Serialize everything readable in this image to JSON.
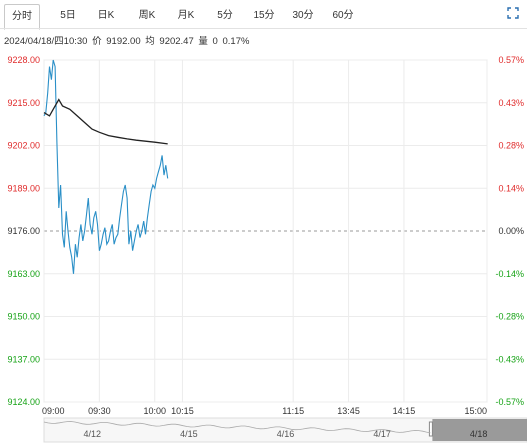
{
  "tabs": [
    {
      "label": "分时",
      "active": true
    },
    {
      "label": "5日",
      "active": false
    },
    {
      "label": "日K",
      "active": false
    },
    {
      "label": "周K",
      "active": false
    },
    {
      "label": "月K",
      "active": false
    },
    {
      "label": "5分",
      "active": false
    },
    {
      "label": "15分",
      "active": false
    },
    {
      "label": "30分",
      "active": false
    },
    {
      "label": "60分",
      "active": false
    }
  ],
  "info": {
    "datetime": "2024/04/18/四10:30",
    "price_label": "价",
    "price": "9192.00",
    "avg_label": "均",
    "avg": "9202.47",
    "vol_label": "量",
    "vol": "0",
    "change": "0.17%"
  },
  "colors": {
    "up": "#e02b2b",
    "down": "#17a317",
    "price_line": "#2a8fc7",
    "avg_line": "#222222"
  },
  "chart_data": {
    "type": "line",
    "ylim": [
      9124,
      9228
    ],
    "prev_close": 9176,
    "y_ticks": [
      "9228.00",
      "9215.00",
      "9202.00",
      "9189.00",
      "9176.00",
      "9163.00",
      "9150.00",
      "9137.00",
      "9124.00"
    ],
    "pct_ticks": [
      "0.57%",
      "0.43%",
      "0.28%",
      "0.14%",
      "0.00%",
      "-0.14%",
      "-0.28%",
      "-0.43%",
      "-0.57%"
    ],
    "x_ticks": [
      "09:00",
      "09:30",
      "10:00",
      "10:15",
      "11:15",
      "13:45",
      "14:15",
      "15:00"
    ],
    "x_tick_minutes": [
      0,
      30,
      60,
      75,
      135,
      165,
      195,
      240
    ],
    "series": [
      {
        "role": "price",
        "points": [
          [
            0,
            9211
          ],
          [
            1,
            9212
          ],
          [
            2,
            9218
          ],
          [
            3,
            9226
          ],
          [
            4,
            9222
          ],
          [
            5,
            9228
          ],
          [
            6,
            9226
          ],
          [
            7,
            9203
          ],
          [
            8,
            9183
          ],
          [
            9,
            9190
          ],
          [
            10,
            9175
          ],
          [
            11,
            9171
          ],
          [
            12,
            9182
          ],
          [
            13,
            9176
          ],
          [
            14,
            9171
          ],
          [
            15,
            9168
          ],
          [
            16,
            9163
          ],
          [
            17,
            9172
          ],
          [
            18,
            9168
          ],
          [
            19,
            9174
          ],
          [
            20,
            9178
          ],
          [
            21,
            9173
          ],
          [
            22,
            9176
          ],
          [
            23,
            9181
          ],
          [
            24,
            9186
          ],
          [
            25,
            9178
          ],
          [
            26,
            9175
          ],
          [
            27,
            9180
          ],
          [
            28,
            9182
          ],
          [
            29,
            9178
          ],
          [
            30,
            9170
          ],
          [
            31,
            9172
          ],
          [
            32,
            9175
          ],
          [
            33,
            9177
          ],
          [
            34,
            9172
          ],
          [
            35,
            9173
          ],
          [
            36,
            9176
          ],
          [
            37,
            9178
          ],
          [
            38,
            9172
          ],
          [
            39,
            9174
          ],
          [
            40,
            9175
          ],
          [
            41,
            9180
          ],
          [
            42,
            9184
          ],
          [
            43,
            9188
          ],
          [
            44,
            9190
          ],
          [
            45,
            9186
          ],
          [
            46,
            9172
          ],
          [
            47,
            9176
          ],
          [
            48,
            9170
          ],
          [
            49,
            9173
          ],
          [
            50,
            9176
          ],
          [
            51,
            9178
          ],
          [
            52,
            9174
          ],
          [
            53,
            9176
          ],
          [
            54,
            9179
          ],
          [
            55,
            9175
          ],
          [
            56,
            9180
          ],
          [
            57,
            9184
          ],
          [
            58,
            9188
          ],
          [
            59,
            9190
          ],
          [
            60,
            9189
          ],
          [
            61,
            9192
          ],
          [
            62,
            9194
          ],
          [
            63,
            9196
          ],
          [
            64,
            9199
          ],
          [
            65,
            9193
          ],
          [
            66,
            9196
          ],
          [
            67,
            9192
          ]
        ]
      },
      {
        "role": "average",
        "points": [
          [
            0,
            9212
          ],
          [
            3,
            9211
          ],
          [
            5,
            9213
          ],
          [
            8,
            9216
          ],
          [
            10,
            9214
          ],
          [
            14,
            9213
          ],
          [
            18,
            9211
          ],
          [
            22,
            9209
          ],
          [
            26,
            9207
          ],
          [
            30,
            9206
          ],
          [
            35,
            9205
          ],
          [
            40,
            9204.5
          ],
          [
            45,
            9204
          ],
          [
            50,
            9203.6
          ],
          [
            55,
            9203.3
          ],
          [
            60,
            9203
          ],
          [
            67,
            9202.5
          ]
        ]
      }
    ]
  },
  "navigator": {
    "dates": [
      "4/12",
      "4/15",
      "4/16",
      "4/17",
      "4/18"
    ]
  }
}
